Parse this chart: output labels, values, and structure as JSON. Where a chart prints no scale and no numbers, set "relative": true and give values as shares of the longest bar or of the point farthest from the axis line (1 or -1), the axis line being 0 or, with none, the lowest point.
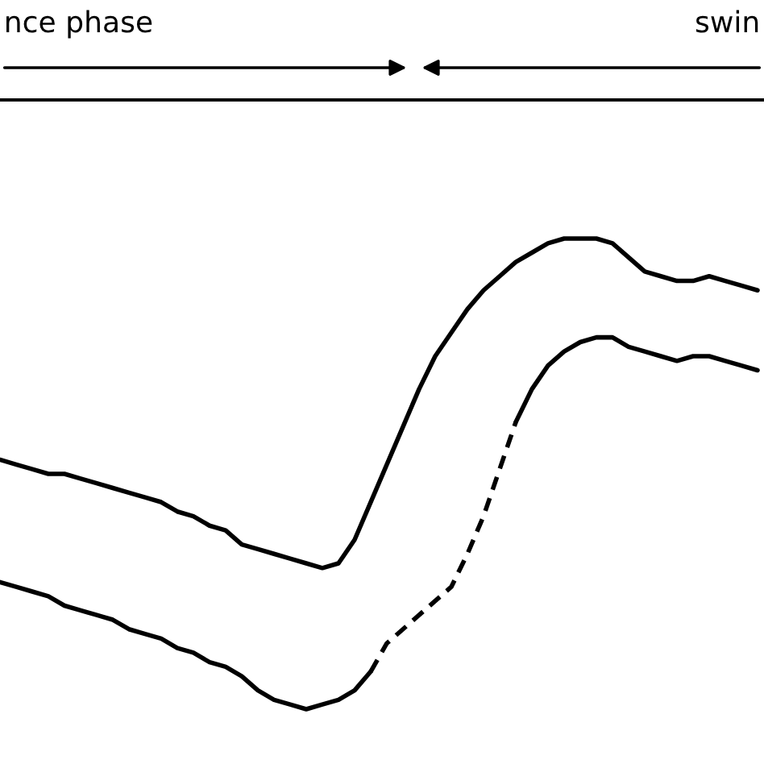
{
  "chart_data": {
    "type": "line",
    "relative": true,
    "legend": false,
    "annotations": [
      "nce phase",
      "swin"
    ],
    "categories": [
      null,
      null,
      null,
      null,
      null,
      null,
      null,
      null,
      null,
      null,
      null,
      null,
      null,
      null,
      null,
      null,
      null,
      null,
      null,
      null,
      null,
      null,
      null,
      null,
      null,
      null,
      null,
      null,
      null,
      null,
      null,
      null,
      null,
      null,
      null,
      null,
      null,
      null,
      null,
      null,
      null,
      null,
      null,
      null,
      null,
      null,
      null,
      null
    ],
    "series": [
      {
        "color": "#000000",
        "line_style": "solid",
        "values": [
          0.53,
          0.52,
          0.51,
          0.5,
          0.5,
          0.49,
          0.48,
          0.47,
          0.46,
          0.45,
          0.44,
          0.42,
          0.41,
          0.39,
          0.38,
          0.35,
          0.34,
          0.33,
          0.32,
          0.31,
          0.3,
          0.31,
          0.36,
          0.44,
          0.52,
          0.6,
          0.68,
          0.75,
          0.8,
          0.85,
          0.89,
          0.92,
          0.95,
          0.97,
          0.99,
          1,
          1,
          1,
          0.99,
          0.96,
          0.93,
          0.92,
          0.91,
          0.91,
          0.92,
          0.91,
          0.9,
          0.89
        ]
      },
      {
        "color": "#000000",
        "line_style": "solid",
        "values": [
          0.27,
          0.26,
          0.25,
          0.24,
          0.22,
          0.21,
          0.2,
          0.19,
          0.17,
          0.16,
          0.15,
          0.13,
          0.12,
          0.1,
          0.09,
          0.07,
          0.04,
          0.02,
          0.01,
          0,
          0.01,
          0.02,
          0.04,
          0.08,
          null,
          null,
          null,
          null,
          null,
          null,
          null,
          null,
          null,
          null,
          null,
          null,
          null,
          null,
          null,
          null,
          null,
          null,
          null,
          null,
          null,
          null,
          null,
          null
        ]
      },
      {
        "color": "#000000",
        "line_style": "dashed",
        "values": [
          null,
          null,
          null,
          null,
          null,
          null,
          null,
          null,
          null,
          null,
          null,
          null,
          null,
          null,
          null,
          null,
          null,
          null,
          null,
          null,
          null,
          null,
          null,
          0.08,
          0.14,
          0.17,
          0.2,
          0.23,
          0.26,
          0.33,
          0.41,
          0.51,
          0.61,
          null,
          null,
          null,
          null,
          null,
          null,
          null,
          null,
          null,
          null,
          null,
          null,
          null,
          null,
          null
        ]
      },
      {
        "color": "#000000",
        "line_style": "solid",
        "values": [
          null,
          null,
          null,
          null,
          null,
          null,
          null,
          null,
          null,
          null,
          null,
          null,
          null,
          null,
          null,
          null,
          null,
          null,
          null,
          null,
          null,
          null,
          null,
          null,
          null,
          null,
          null,
          null,
          null,
          null,
          null,
          null,
          0.61,
          0.68,
          0.73,
          0.76,
          0.78,
          0.79,
          0.79,
          0.77,
          0.76,
          0.75,
          0.74,
          0.75,
          0.75,
          0.74,
          0.73,
          0.72
        ]
      }
    ]
  }
}
